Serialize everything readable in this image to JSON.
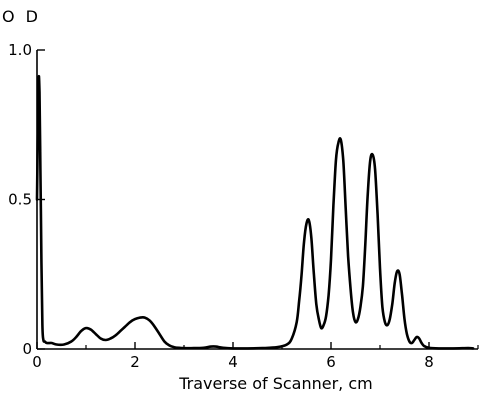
{
  "chart_data": {
    "type": "line",
    "title": "",
    "xlabel": "Traverse of Scanner, cm",
    "ylabel": "O D",
    "xlim": [
      0,
      9
    ],
    "ylim": [
      0,
      1.0
    ],
    "x_ticks": [
      0,
      2,
      4,
      6,
      8
    ],
    "x_tick_labels": [
      "0",
      "2",
      "4",
      "6",
      "8"
    ],
    "x_minor_ticks": [
      1,
      3,
      5,
      7,
      9
    ],
    "y_ticks": [
      0,
      0.5,
      1.0
    ],
    "y_tick_labels": [
      "0",
      "0.5",
      "1.0"
    ],
    "grid": false,
    "colors": {
      "line": "#000000",
      "axis": "#000000"
    },
    "series": [
      {
        "x": [
          0.0,
          0.03,
          0.05,
          0.07,
          0.09,
          0.11,
          0.13,
          0.16,
          0.2,
          0.3,
          0.4,
          0.55,
          0.7,
          0.8,
          0.9,
          1.0,
          1.1,
          1.2,
          1.3,
          1.4,
          1.5,
          1.6,
          1.7,
          1.8,
          1.9,
          2.0,
          2.1,
          2.2,
          2.3,
          2.4,
          2.5,
          2.6,
          2.7,
          2.8,
          2.9,
          3.0,
          3.2,
          3.4,
          3.55,
          3.65,
          3.8,
          4.0,
          4.3,
          4.6,
          4.9,
          5.1,
          5.2,
          5.3,
          5.35,
          5.4,
          5.45,
          5.5,
          5.55,
          5.6,
          5.65,
          5.7,
          5.75,
          5.8,
          5.85,
          5.9,
          5.95,
          6.0,
          6.05,
          6.1,
          6.15,
          6.2,
          6.25,
          6.3,
          6.35,
          6.4,
          6.45,
          6.5,
          6.55,
          6.6,
          6.65,
          6.7,
          6.75,
          6.8,
          6.85,
          6.9,
          6.95,
          7.0,
          7.05,
          7.1,
          7.15,
          7.2,
          7.25,
          7.3,
          7.35,
          7.4,
          7.45,
          7.5,
          7.55,
          7.6,
          7.65,
          7.7,
          7.75,
          7.8,
          7.85,
          7.9,
          8.0,
          8.2,
          8.5,
          8.8,
          8.9
        ],
        "y": [
          0.5,
          0.88,
          0.86,
          0.6,
          0.3,
          0.08,
          0.03,
          0.025,
          0.02,
          0.02,
          0.015,
          0.015,
          0.025,
          0.04,
          0.06,
          0.07,
          0.065,
          0.05,
          0.035,
          0.03,
          0.035,
          0.045,
          0.06,
          0.075,
          0.09,
          0.1,
          0.105,
          0.105,
          0.095,
          0.075,
          0.05,
          0.025,
          0.012,
          0.006,
          0.004,
          0.003,
          0.003,
          0.004,
          0.008,
          0.008,
          0.004,
          0.002,
          0.002,
          0.003,
          0.006,
          0.015,
          0.035,
          0.09,
          0.16,
          0.25,
          0.36,
          0.42,
          0.43,
          0.37,
          0.25,
          0.15,
          0.1,
          0.07,
          0.08,
          0.11,
          0.18,
          0.3,
          0.48,
          0.63,
          0.69,
          0.7,
          0.63,
          0.47,
          0.31,
          0.2,
          0.12,
          0.09,
          0.1,
          0.14,
          0.21,
          0.35,
          0.52,
          0.63,
          0.65,
          0.6,
          0.45,
          0.27,
          0.14,
          0.09,
          0.08,
          0.1,
          0.15,
          0.22,
          0.26,
          0.25,
          0.18,
          0.1,
          0.05,
          0.025,
          0.02,
          0.03,
          0.04,
          0.035,
          0.02,
          0.01,
          0.004,
          0.002,
          0.002,
          0.003,
          0.002
        ]
      }
    ]
  }
}
